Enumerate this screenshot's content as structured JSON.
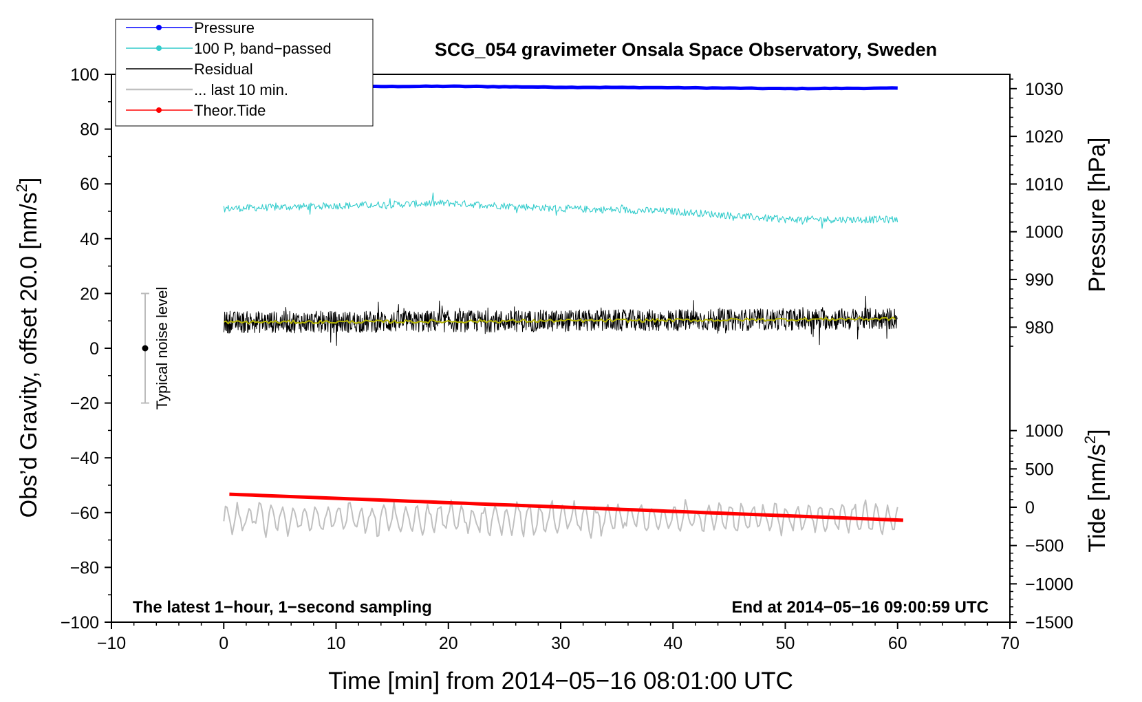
{
  "chart_data": {
    "type": "line",
    "title": "SCG_054 gravimeter Onsala Space Observatory, Sweden",
    "xlabel": "Time [min] from 2014−05−16 08:01:00 UTC",
    "ylabel_left": "Obs’d Gravity, offset 20.0 [nm/s",
    "ylabel_left_sup": "2",
    "ylabel_left_end": "]",
    "ylabel_right_pressure": "Pressure [hPa]",
    "ylabel_right_tide": "Tide [nm/s",
    "ylabel_right_tide_sup": "2",
    "ylabel_right_tide_end": "]",
    "xlim": [
      -10,
      70
    ],
    "ylim_left": [
      -100,
      100
    ],
    "pressure_axis": {
      "min": 975,
      "max": 1033
    },
    "tide_axis": {
      "min": -1500,
      "max": 1500
    },
    "x_ticks": [
      -10,
      0,
      10,
      20,
      30,
      40,
      50,
      60,
      70
    ],
    "x_tick_labels": [
      "−10",
      "0",
      "10",
      "20",
      "30",
      "40",
      "50",
      "60",
      "70"
    ],
    "y_ticks_left": [
      100,
      80,
      60,
      40,
      20,
      0,
      -20,
      -40,
      -60,
      -80,
      -100
    ],
    "y_tick_labels_left": [
      "100",
      "80",
      "60",
      "40",
      "20",
      "0",
      "−20",
      "−40",
      "−60",
      "−80",
      "−100"
    ],
    "pressure_ticks": [
      1030,
      1020,
      1010,
      1000,
      990,
      980
    ],
    "pressure_tick_labels": [
      "1030",
      "1020",
      "1010",
      "1000",
      "990",
      "980"
    ],
    "tide_ticks": [
      1000,
      500,
      0,
      -500,
      -1000,
      -1500
    ],
    "tide_tick_labels": [
      "1000",
      "500",
      "0",
      "−500",
      "−1000",
      "−1500"
    ],
    "legend": [
      {
        "label": "Pressure",
        "color": "#0000ff",
        "marker": true
      },
      {
        "label": "100 P, band−passed",
        "color": "#33cccc",
        "marker": true
      },
      {
        "label": "Residual",
        "color": "#000000",
        "marker": false
      },
      {
        "label": "... last 10 min.",
        "color": "#c0c0c0",
        "marker": false
      },
      {
        "label": "Theor.Tide",
        "color": "#ff0000",
        "marker": true
      }
    ],
    "legend_position": "top-left",
    "annotations": {
      "bottom_left": "The latest 1−hour, 1−second sampling",
      "bottom_right": "End at 2014−05−16 09:00:59 UTC",
      "noise_label": "Typical noise level"
    },
    "noise_bar": {
      "x": -7,
      "center": 0,
      "low": -20,
      "high": 20
    },
    "series": [
      {
        "name": "Pressure",
        "color": "#0000ff",
        "axis": "pressure",
        "x": [
          0,
          10,
          20,
          30,
          40,
          50,
          60
        ],
        "values": [
          1030.2,
          1030.4,
          1030.5,
          1030.3,
          1030.2,
          1030.0,
          1030.1
        ]
      },
      {
        "name": "100 P, band−passed",
        "color": "#33cccc",
        "axis": "left",
        "x": [
          0,
          10,
          20,
          30,
          40,
          50,
          60
        ],
        "values": [
          51,
          52,
          53,
          51,
          50,
          47,
          47
        ],
        "noise_amplitude": 1.3
      },
      {
        "name": "Residual",
        "color": "#000000",
        "axis": "left",
        "x": [
          0,
          10,
          20,
          30,
          40,
          50,
          60
        ],
        "values": [
          9.5,
          9.6,
          9.8,
          10.0,
          10.2,
          10.5,
          10.8
        ],
        "noise_amplitude": 4
      },
      {
        "name": "Residual smoothed",
        "color": "#b3b300",
        "axis": "left",
        "x": [
          0,
          10,
          20,
          30,
          40,
          50,
          60
        ],
        "values": [
          9.5,
          9.6,
          9.8,
          10.0,
          10.2,
          10.5,
          10.8
        ]
      },
      {
        "name": "... last 10 min.",
        "color": "#c0c0c0",
        "axis": "left",
        "x": [
          0,
          60
        ],
        "values": [
          -62,
          -62
        ],
        "oscillation_amplitude": 4.5
      },
      {
        "name": "Theor.Tide",
        "color": "#ff0000",
        "axis": "tide",
        "x": [
          0.5,
          60.5
        ],
        "values": [
          170,
          -170
        ]
      }
    ]
  }
}
